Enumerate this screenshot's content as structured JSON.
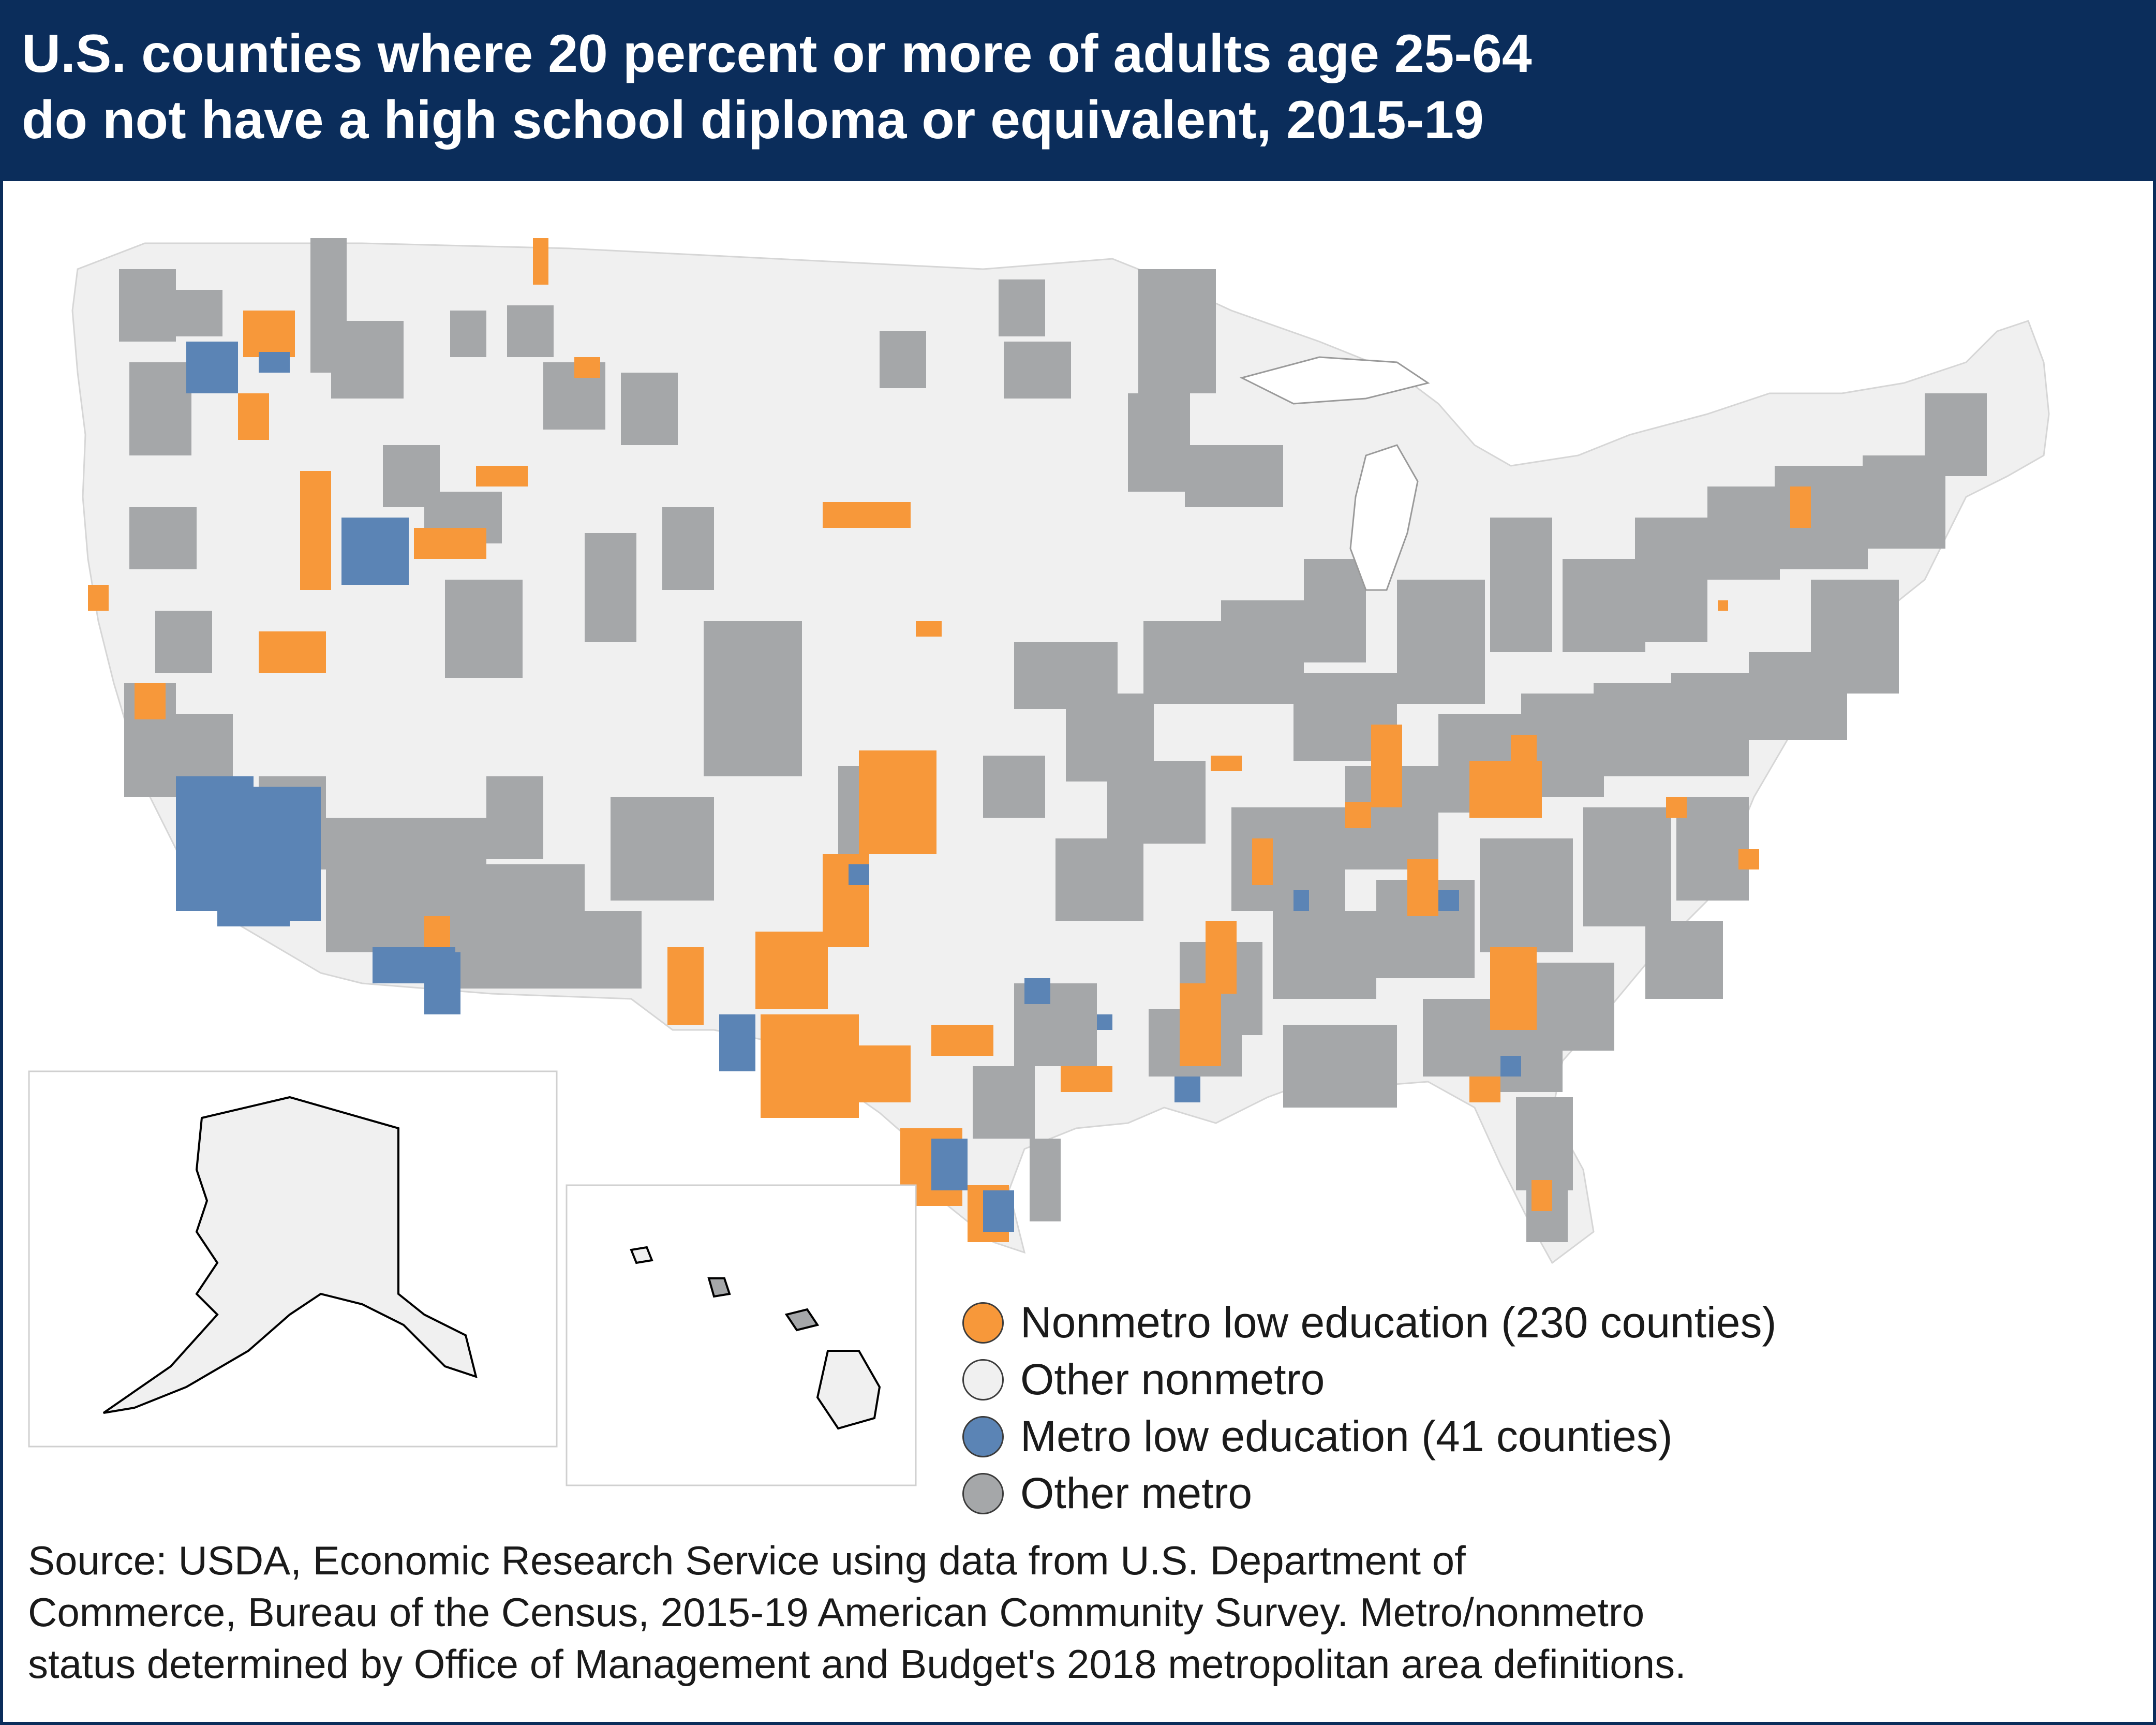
{
  "title": {
    "line1": "U.S. counties where 20 percent or more of adults age 25-64",
    "line2": "do not have a high school diploma or equivalent, 2015-19"
  },
  "legend": {
    "items": [
      {
        "label": "Nonmetro low education (230 counties)",
        "color": "#f7983a"
      },
      {
        "label": "Other nonmetro",
        "color": "#f0f0f0"
      },
      {
        "label": "Metro low education (41 counties)",
        "color": "#5b84b5"
      },
      {
        "label": "Other metro",
        "color": "#a5a7a9"
      }
    ]
  },
  "map_regions": {
    "lower48": "Contiguous United States",
    "alaska": "Alaska",
    "hawaii": "Hawaii"
  },
  "source": {
    "line1": "Source: USDA, Economic Research Service using data from U.S. Department of",
    "line2": "Commerce, Bureau of the Census, 2015-19 American Community Survey. Metro/nonmetro",
    "line3": "status determined by Office of Management and Budget's 2018 metropolitan area definitions."
  },
  "colors": {
    "header_bg": "#0b2d5b",
    "nonmetro_low": "#f7983a",
    "other_nonmetro": "#f0f0f0",
    "metro_low": "#5b84b5",
    "other_metro": "#a5a7a9"
  }
}
